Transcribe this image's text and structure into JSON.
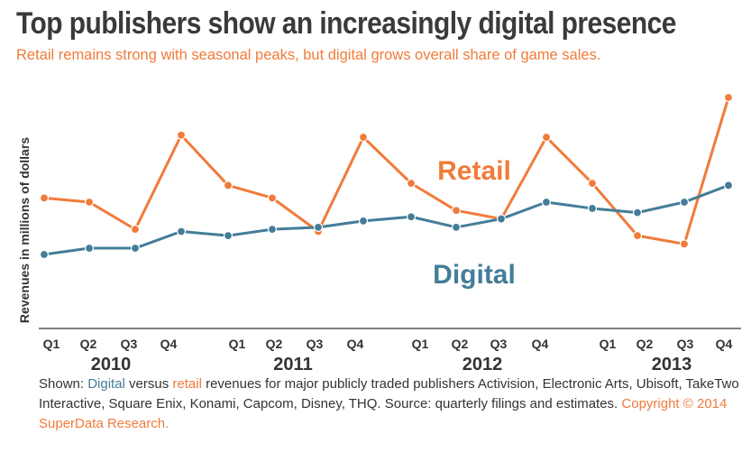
{
  "header": {
    "title": "Top publishers show an increasingly digital presence",
    "subtitle": "Retail remains strong with seasonal peaks, but digital grows overall share of game sales."
  },
  "caption": {
    "prefix": "Shown: ",
    "digital_word": "Digital",
    "versus": " versus ",
    "retail_word": "retail",
    "body": " revenues for major publicly traded publishers Activision, Electronic Arts, Ubisoft, TakeTwo Interactive, Square Enix, Konami, Capcom, Disney, THQ. Source: quarterly filings and estimates. ",
    "copyright": "Copyright © 2014 SuperData Research."
  },
  "colors": {
    "retail": "#f07b3a",
    "digital": "#447d98",
    "title": "#3a3a3a",
    "axis": "#333333"
  },
  "chart_data": {
    "type": "line",
    "title": "Top publishers show an increasingly digital presence",
    "subtitle": "Retail remains strong with seasonal peaks, but digital grows overall share of game sales.",
    "ylabel": "Revenues in millions of dollars",
    "xlabel": "",
    "y_tick_labels_shown": false,
    "grid": false,
    "ylim": [
      0,
      100
    ],
    "categories": [
      "Q1",
      "Q2",
      "Q3",
      "Q4",
      "Q1",
      "Q2",
      "Q3",
      "Q4",
      "Q1",
      "Q2",
      "Q3",
      "Q4",
      "Q1",
      "Q2",
      "Q3",
      "Q4"
    ],
    "years": [
      "2010",
      "2011",
      "2012",
      "2013"
    ],
    "series": [
      {
        "name": "Retail",
        "color": "#f07b3a",
        "values": [
          52,
          50,
          37,
          82,
          58,
          52,
          36,
          81,
          59,
          46,
          42,
          81,
          59,
          34,
          30,
          100
        ],
        "label_anchor_index": 9
      },
      {
        "name": "Digital",
        "color": "#447d98",
        "values": [
          25,
          28,
          28,
          36,
          34,
          37,
          38,
          41,
          43,
          38,
          42,
          50,
          47,
          45,
          50,
          58
        ],
        "label_anchor_index": 9
      }
    ]
  }
}
